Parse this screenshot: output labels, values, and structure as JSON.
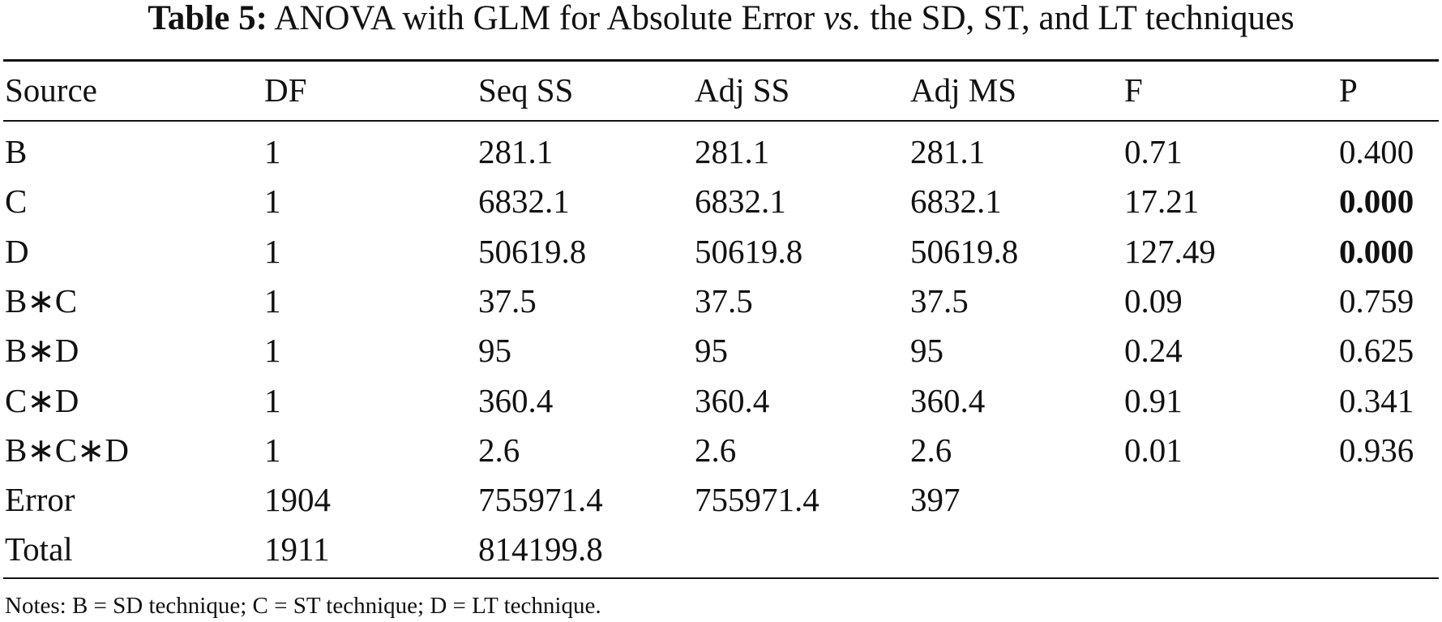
{
  "caption": {
    "label": "Table 5:",
    "text_before": "ANOVA with GLM for Absolute Error",
    "italic": "vs.",
    "text_after": "the SD, ST, and LT techniques"
  },
  "table": {
    "header": [
      "Source",
      "DF",
      "Seq SS",
      "Adj SS",
      "Adj MS",
      "F",
      "P"
    ],
    "rows": [
      [
        "B",
        "1",
        "281.1",
        "281.1",
        "281.1",
        "0.71",
        "0.400"
      ],
      [
        "C",
        "1",
        "6832.1",
        "6832.1",
        "6832.1",
        "17.21",
        "0.000"
      ],
      [
        "D",
        "1",
        "50619.8",
        "50619.8",
        "50619.8",
        "127.49",
        "0.000"
      ],
      [
        "B∗C",
        "1",
        "37.5",
        "37.5",
        "37.5",
        "0.09",
        "0.759"
      ],
      [
        "B∗D",
        "1",
        "95",
        "95",
        "95",
        "0.24",
        "0.625"
      ],
      [
        "C∗D",
        "1",
        "360.4",
        "360.4",
        "360.4",
        "0.91",
        "0.341"
      ],
      [
        "B∗C∗D",
        "1",
        "2.6",
        "2.6",
        "2.6",
        "0.01",
        "0.936"
      ],
      [
        "Error",
        "1904",
        "755971.4",
        "755971.4",
        "397"
      ],
      [
        "Total",
        "1911",
        "814199.8"
      ]
    ]
  },
  "notes": "Notes: B = SD technique; C = ST technique; D = LT technique."
}
